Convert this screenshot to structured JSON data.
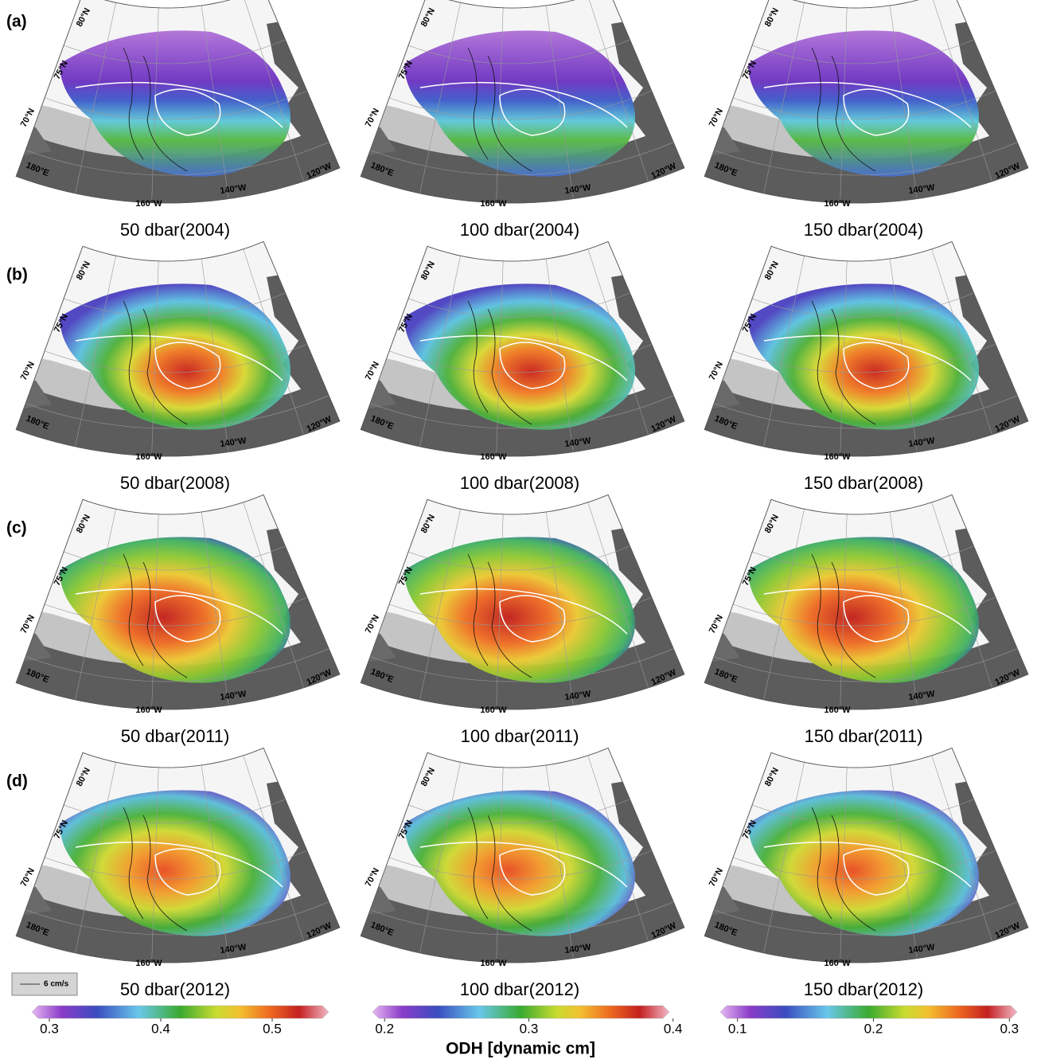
{
  "rows": [
    {
      "label": "(a)",
      "panels": [
        {
          "caption": "50 dbar(2004)"
        },
        {
          "caption": "100 dbar(2004)"
        },
        {
          "caption": "150 dbar(2004)"
        }
      ]
    },
    {
      "label": "(b)",
      "panels": [
        {
          "caption": "50 dbar(2008)"
        },
        {
          "caption": "100 dbar(2008)"
        },
        {
          "caption": "150 dbar(2008)"
        }
      ]
    },
    {
      "label": "(c)",
      "panels": [
        {
          "caption": "50 dbar(2011)"
        },
        {
          "caption": "100 dbar(2011)"
        },
        {
          "caption": "150 dbar(2011)"
        }
      ]
    },
    {
      "label": "(d)",
      "panels": [
        {
          "caption": "50 dbar(2012)"
        },
        {
          "caption": "100 dbar(2012)"
        },
        {
          "caption": "150 dbar(2012)"
        }
      ]
    }
  ],
  "map_labels": {
    "lat": [
      "80°N",
      "75°N",
      "70°N"
    ],
    "lon": [
      "180°E",
      "160°W",
      "140°W",
      "120°W"
    ]
  },
  "scale_legend": "6 cm/s",
  "colorbars": [
    {
      "lim": [
        0.29,
        0.545
      ],
      "ticks": [
        0.3,
        0.4,
        0.5
      ]
    },
    {
      "lim": [
        0.196,
        0.393
      ],
      "ticks": [
        0.2,
        0.3,
        0.4
      ]
    },
    {
      "lim": [
        0.092,
        0.301
      ],
      "ticks": [
        0.1,
        0.2,
        0.3
      ]
    }
  ],
  "colorbar_title": "ODH [dynamic cm]"
}
